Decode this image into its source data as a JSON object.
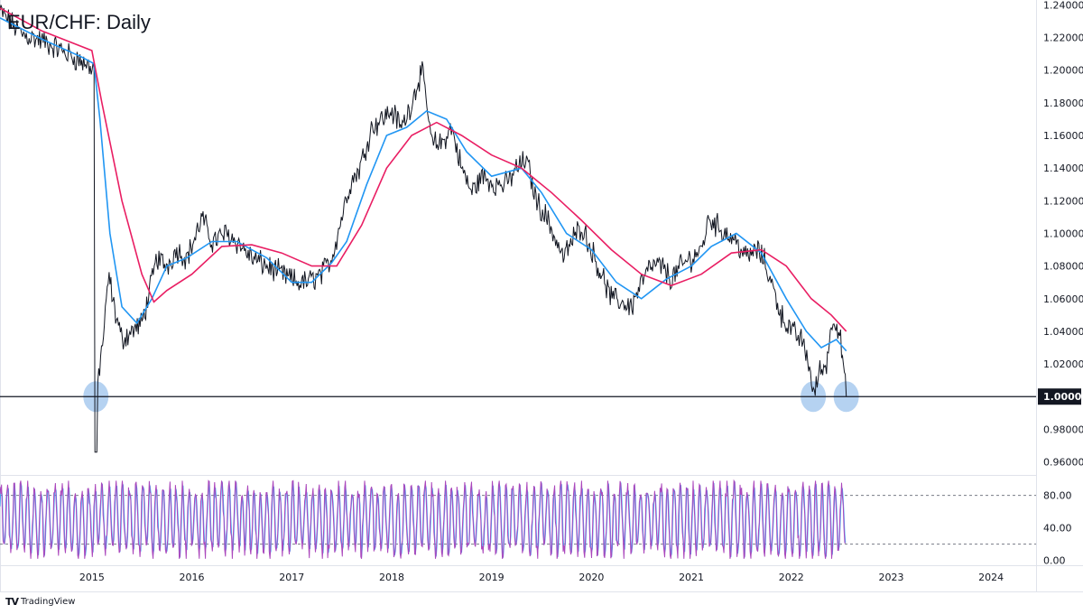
{
  "header": {
    "title": "EUR/CHF: Daily"
  },
  "branding": {
    "name": "TradingView",
    "logo_icon": "tradingview-logo-icon"
  },
  "colors": {
    "price": "#131722",
    "fast_ma": "#2196f3",
    "slow_ma": "#e91e63",
    "oscillator": "#ab47bc",
    "oscillator_signal": "#42a5f5",
    "support_line": "#131722",
    "highlight": "#9cc3ec",
    "grid": "#e0e3eb"
  },
  "chart_data": [
    {
      "type": "line",
      "title": "EUR/CHF: Daily",
      "symbol": "EUR/CHF",
      "interval": "Daily",
      "x_axis": {
        "type": "time",
        "ticks": [
          "2015",
          "2016",
          "2017",
          "2018",
          "2019",
          "2020",
          "2021",
          "2022",
          "2023",
          "2024"
        ],
        "xlim": [
          2014.08,
          2024.45
        ]
      },
      "y_axis": {
        "position": "right",
        "ticks": [
          "1.24000",
          "1.22000",
          "1.20000",
          "1.18000",
          "1.16000",
          "1.14000",
          "1.12000",
          "1.10000",
          "1.08000",
          "1.06000",
          "1.04000",
          "1.02000",
          "1.00000",
          "0.98000",
          "0.96000"
        ],
        "ylim": [
          0.952,
          1.243
        ]
      },
      "horizontal_line": {
        "value": 1.0,
        "label": "1.00000"
      },
      "highlighted_points": [
        {
          "date": 2015.04,
          "value": 1.0
        },
        {
          "date": 2022.22,
          "value": 1.0
        },
        {
          "date": 2022.55,
          "value": 1.0
        }
      ],
      "series": [
        {
          "style": "price",
          "points": [
            [
              2014.08,
              1.236
            ],
            [
              2014.3,
              1.222
            ],
            [
              2014.5,
              1.218
            ],
            [
              2014.7,
              1.212
            ],
            [
              2014.9,
              1.205
            ],
            [
              2015.02,
              1.201
            ],
            [
              2015.03,
              1.2
            ],
            [
              2015.04,
              0.985
            ],
            [
              2015.06,
              1.01
            ],
            [
              2015.12,
              1.04
            ],
            [
              2015.17,
              1.075
            ],
            [
              2015.22,
              1.055
            ],
            [
              2015.3,
              1.035
            ],
            [
              2015.4,
              1.04
            ],
            [
              2015.5,
              1.045
            ],
            [
              2015.58,
              1.065
            ],
            [
              2015.65,
              1.085
            ],
            [
              2015.75,
              1.08
            ],
            [
              2015.85,
              1.09
            ],
            [
              2015.95,
              1.085
            ],
            [
              2016.05,
              1.1
            ],
            [
              2016.1,
              1.11
            ],
            [
              2016.2,
              1.095
            ],
            [
              2016.35,
              1.1
            ],
            [
              2016.45,
              1.095
            ],
            [
              2016.6,
              1.085
            ],
            [
              2016.75,
              1.08
            ],
            [
              2016.9,
              1.075
            ],
            [
              2017.05,
              1.07
            ],
            [
              2017.15,
              1.07
            ],
            [
              2017.3,
              1.075
            ],
            [
              2017.4,
              1.085
            ],
            [
              2017.5,
              1.11
            ],
            [
              2017.58,
              1.13
            ],
            [
              2017.68,
              1.14
            ],
            [
              2017.8,
              1.165
            ],
            [
              2017.9,
              1.17
            ],
            [
              2018.0,
              1.175
            ],
            [
              2018.1,
              1.165
            ],
            [
              2018.2,
              1.18
            ],
            [
              2018.3,
              1.2
            ],
            [
              2018.35,
              1.18
            ],
            [
              2018.4,
              1.155
            ],
            [
              2018.5,
              1.155
            ],
            [
              2018.6,
              1.165
            ],
            [
              2018.7,
              1.14
            ],
            [
              2018.8,
              1.125
            ],
            [
              2018.9,
              1.135
            ],
            [
              2019.05,
              1.13
            ],
            [
              2019.15,
              1.13
            ],
            [
              2019.25,
              1.14
            ],
            [
              2019.35,
              1.145
            ],
            [
              2019.45,
              1.12
            ],
            [
              2019.55,
              1.11
            ],
            [
              2019.65,
              1.095
            ],
            [
              2019.72,
              1.085
            ],
            [
              2019.8,
              1.095
            ],
            [
              2019.9,
              1.105
            ],
            [
              2020.0,
              1.09
            ],
            [
              2020.1,
              1.075
            ],
            [
              2020.2,
              1.06
            ],
            [
              2020.3,
              1.058
            ],
            [
              2020.4,
              1.055
            ],
            [
              2020.5,
              1.07
            ],
            [
              2020.6,
              1.08
            ],
            [
              2020.7,
              1.08
            ],
            [
              2020.8,
              1.072
            ],
            [
              2020.9,
              1.08
            ],
            [
              2021.0,
              1.085
            ],
            [
              2021.1,
              1.09
            ],
            [
              2021.18,
              1.11
            ],
            [
              2021.25,
              1.105
            ],
            [
              2021.35,
              1.1
            ],
            [
              2021.45,
              1.095
            ],
            [
              2021.55,
              1.085
            ],
            [
              2021.65,
              1.09
            ],
            [
              2021.72,
              1.085
            ],
            [
              2021.8,
              1.07
            ],
            [
              2021.9,
              1.05
            ],
            [
              2022.0,
              1.04
            ],
            [
              2022.1,
              1.035
            ],
            [
              2022.18,
              1.02
            ],
            [
              2022.22,
              1.0
            ],
            [
              2022.28,
              1.015
            ],
            [
              2022.35,
              1.02
            ],
            [
              2022.42,
              1.05
            ],
            [
              2022.48,
              1.04
            ],
            [
              2022.52,
              1.02
            ],
            [
              2022.55,
              1.0
            ]
          ]
        },
        {
          "style": "fast_ma",
          "points": [
            [
              2014.08,
              1.232
            ],
            [
              2014.5,
              1.219
            ],
            [
              2014.9,
              1.208
            ],
            [
              2015.02,
              1.204
            ],
            [
              2015.08,
              1.17
            ],
            [
              2015.18,
              1.1
            ],
            [
              2015.3,
              1.055
            ],
            [
              2015.45,
              1.045
            ],
            [
              2015.6,
              1.06
            ],
            [
              2015.75,
              1.08
            ],
            [
              2015.95,
              1.085
            ],
            [
              2016.2,
              1.095
            ],
            [
              2016.45,
              1.095
            ],
            [
              2016.75,
              1.085
            ],
            [
              2017.0,
              1.07
            ],
            [
              2017.2,
              1.07
            ],
            [
              2017.4,
              1.082
            ],
            [
              2017.55,
              1.095
            ],
            [
              2017.75,
              1.13
            ],
            [
              2017.95,
              1.16
            ],
            [
              2018.15,
              1.165
            ],
            [
              2018.35,
              1.175
            ],
            [
              2018.55,
              1.17
            ],
            [
              2018.75,
              1.15
            ],
            [
              2019.0,
              1.135
            ],
            [
              2019.3,
              1.14
            ],
            [
              2019.5,
              1.125
            ],
            [
              2019.75,
              1.1
            ],
            [
              2020.0,
              1.09
            ],
            [
              2020.25,
              1.07
            ],
            [
              2020.5,
              1.06
            ],
            [
              2020.75,
              1.072
            ],
            [
              2021.0,
              1.08
            ],
            [
              2021.2,
              1.092
            ],
            [
              2021.45,
              1.1
            ],
            [
              2021.7,
              1.088
            ],
            [
              2021.95,
              1.06
            ],
            [
              2022.15,
              1.04
            ],
            [
              2022.3,
              1.03
            ],
            [
              2022.45,
              1.035
            ],
            [
              2022.55,
              1.028
            ]
          ]
        },
        {
          "style": "slow_ma",
          "points": [
            [
              2014.08,
              1.238
            ],
            [
              2014.5,
              1.224
            ],
            [
              2015.0,
              1.212
            ],
            [
              2015.1,
              1.18
            ],
            [
              2015.3,
              1.12
            ],
            [
              2015.5,
              1.075
            ],
            [
              2015.62,
              1.058
            ],
            [
              2015.75,
              1.065
            ],
            [
              2016.0,
              1.075
            ],
            [
              2016.3,
              1.092
            ],
            [
              2016.6,
              1.093
            ],
            [
              2016.9,
              1.088
            ],
            [
              2017.2,
              1.08
            ],
            [
              2017.45,
              1.08
            ],
            [
              2017.7,
              1.105
            ],
            [
              2017.95,
              1.14
            ],
            [
              2018.2,
              1.16
            ],
            [
              2018.45,
              1.168
            ],
            [
              2018.7,
              1.16
            ],
            [
              2019.0,
              1.148
            ],
            [
              2019.3,
              1.14
            ],
            [
              2019.6,
              1.125
            ],
            [
              2019.9,
              1.108
            ],
            [
              2020.2,
              1.09
            ],
            [
              2020.5,
              1.075
            ],
            [
              2020.8,
              1.068
            ],
            [
              2021.1,
              1.075
            ],
            [
              2021.4,
              1.088
            ],
            [
              2021.7,
              1.09
            ],
            [
              2021.95,
              1.08
            ],
            [
              2022.2,
              1.06
            ],
            [
              2022.4,
              1.05
            ],
            [
              2022.55,
              1.04
            ]
          ]
        }
      ]
    },
    {
      "type": "line",
      "title": "",
      "y_axis": {
        "position": "right",
        "ticks": [
          "80.00",
          "40.00",
          "0.00"
        ],
        "ylim": [
          -6,
          104
        ],
        "reference_levels": [
          80,
          20
        ]
      },
      "x_axis": {
        "type": "time",
        "xlim": [
          2014.08,
          2024.45
        ]
      },
      "series": [
        {
          "style": "oscillator",
          "end": 2022.55
        },
        {
          "style": "oscillator_signal",
          "end": 2022.55
        }
      ]
    }
  ]
}
